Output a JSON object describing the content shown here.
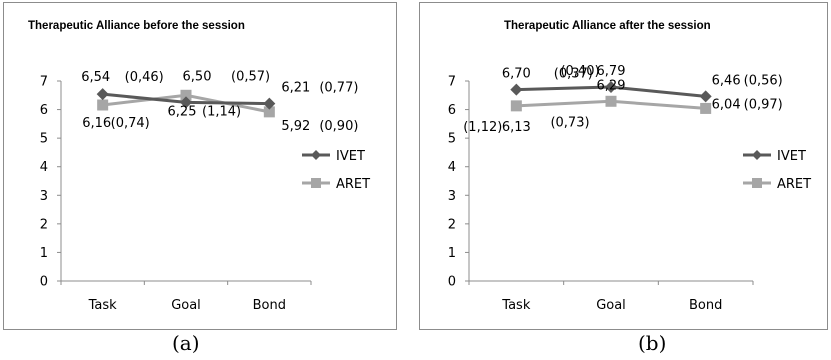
{
  "captions": [
    "(a)",
    "(b)"
  ],
  "chart_data": [
    {
      "type": "line",
      "title": "Therapeutic Alliance before the session",
      "categories": [
        "Task",
        "Goal",
        "Bond"
      ],
      "ylim": [
        0,
        7
      ],
      "yticks": [
        "0",
        "1",
        "2",
        "3",
        "4",
        "5",
        "6",
        "7"
      ],
      "grid": false,
      "legend": "right",
      "series": [
        {
          "name": "IVET",
          "color": "#595959",
          "marker": "diamond",
          "values": [
            6.54,
            6.25,
            6.21
          ],
          "labels": [
            "6,54",
            "6,25",
            "6,21"
          ],
          "sd": [
            "(0,46)",
            "(1,14)",
            "(0,77)"
          ]
        },
        {
          "name": "ARET",
          "color": "#a6a6a6",
          "marker": "square",
          "values": [
            6.16,
            6.5,
            5.92
          ],
          "labels": [
            "6,16",
            "6,50",
            "5,92"
          ],
          "sd": [
            "(0,74)",
            "(0,57)",
            "(0,90)"
          ]
        }
      ]
    },
    {
      "type": "line",
      "title": "Therapeutic Alliance after the session",
      "categories": [
        "Task",
        "Goal",
        "Bond"
      ],
      "ylim": [
        0,
        7
      ],
      "yticks": [
        "0",
        "1",
        "2",
        "3",
        "4",
        "5",
        "6",
        "7"
      ],
      "grid": false,
      "legend": "right",
      "series": [
        {
          "name": "IVET",
          "color": "#595959",
          "marker": "diamond",
          "values": [
            6.7,
            6.79,
            6.46
          ],
          "labels": [
            "6,70",
            "6,79",
            "6,46"
          ],
          "sd": [
            "(0,37)",
            "(0,40)",
            "(0,56)"
          ]
        },
        {
          "name": "ARET",
          "color": "#a6a6a6",
          "marker": "square",
          "values": [
            6.13,
            6.29,
            6.04
          ],
          "labels": [
            "6,13",
            "6,29",
            "6,04"
          ],
          "sd": [
            "(1,12)",
            "(0,73)",
            "(0,97)"
          ]
        }
      ]
    }
  ]
}
